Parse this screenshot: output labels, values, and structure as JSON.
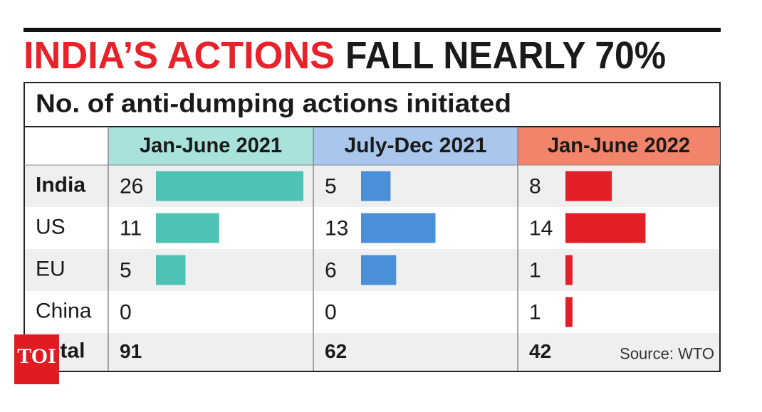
{
  "chart_data": {
    "type": "bar",
    "title": [
      "INDIA’S ACTIONS",
      "FALL NEARLY 70%"
    ],
    "subtitle": "No. of anti-dumping actions initiated",
    "categories": [
      "India",
      "US",
      "EU",
      "China"
    ],
    "total_label": "Total",
    "xlim": [
      0,
      26
    ],
    "series": [
      {
        "name": "Jan-June 2021",
        "header_color": "#a8e2da",
        "color": "#4fc2b6",
        "values": [
          26,
          11,
          5,
          0
        ],
        "total": 91
      },
      {
        "name": "July-Dec 2021",
        "header_color": "#a9c7ec",
        "color": "#4a90d9",
        "values": [
          5,
          13,
          6,
          0
        ],
        "total": 62
      },
      {
        "name": "Jan-June 2022",
        "header_color": "#f2846b",
        "color": "#e31e26",
        "values": [
          8,
          14,
          1,
          1
        ],
        "total": 42
      }
    ],
    "source": "Source: WTO",
    "logo": "TOI"
  }
}
